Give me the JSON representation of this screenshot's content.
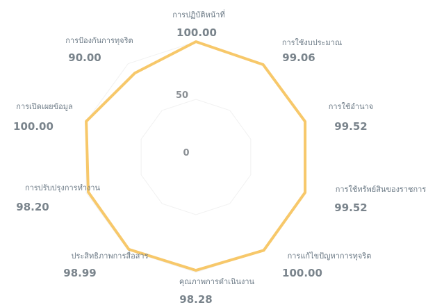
{
  "chart_data": {
    "type": "radar",
    "radial_ticks": [
      "0",
      "50"
    ],
    "rlim": [
      0,
      100
    ],
    "series_color": "#f7c86a",
    "categories": [
      "การปฏิบัติหน้าที่",
      "การใช้งบประมาณ",
      "การใช้อำนาจ",
      "การใช้ทรัพย์สินของราชการ",
      "การแก้ไขปัญหาการทุจริต",
      "คุณภาพการดำเนินงาน",
      "ประสิทธิภาพการสื่อสาร",
      "การปรับปรุงการทำงาน",
      "การเปิดเผยข้อมูล",
      "การป้องกันการทุจริต"
    ],
    "value_labels": [
      "100.00",
      "99.06",
      "99.52",
      "99.52",
      "100.00",
      "98.28",
      "98.99",
      "98.20",
      "100.00",
      "90.00"
    ],
    "values": [
      100.0,
      99.06,
      99.52,
      99.52,
      100.0,
      98.28,
      98.99,
      98.2,
      100.0,
      90.0
    ]
  }
}
